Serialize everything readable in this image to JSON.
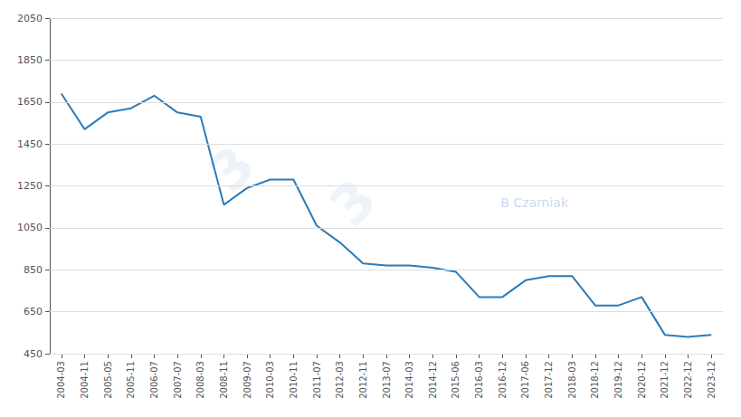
{
  "chart_data": {
    "type": "line",
    "categories": [
      "2004-03",
      "2004-11",
      "2005-05",
      "2005-11",
      "2006-07",
      "2007-07",
      "2008-03",
      "2008-11",
      "2009-07",
      "2010-03",
      "2010-11",
      "2011-07",
      "2012-03",
      "2012-11",
      "2013-07",
      "2014-03",
      "2014-12",
      "2015-06",
      "2016-03",
      "2016-12",
      "2017-06",
      "2017-12",
      "2018-03",
      "2018-12",
      "2019-12",
      "2020-12",
      "2021-12",
      "2022-12",
      "2023-12"
    ],
    "values": [
      1690,
      1520,
      1600,
      1620,
      1680,
      1600,
      1580,
      1160,
      1240,
      1280,
      1280,
      1060,
      980,
      880,
      870,
      870,
      860,
      840,
      720,
      720,
      800,
      820,
      820,
      680,
      680,
      720,
      540,
      530,
      540
    ],
    "color": "#2B7BB9",
    "ylim": [
      450,
      2050
    ],
    "yticks": [
      450,
      650,
      850,
      1050,
      1250,
      1450,
      1650,
      1850,
      2050
    ],
    "grid": true,
    "annotations": [
      "B Czarniak",
      "3",
      "3"
    ]
  }
}
